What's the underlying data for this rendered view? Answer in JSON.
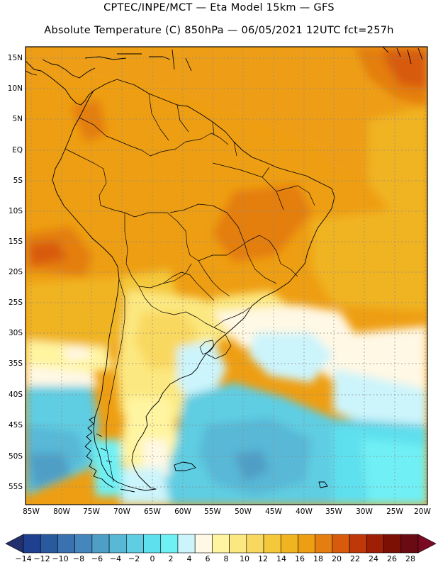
{
  "title": {
    "line1": "CPTEC/INPE/MCT —  Eta Model 15km — GFS",
    "line2": "Absolute Temperature (C) 850hPa — 06/05/2021 12UTC fct=257h"
  },
  "lat_labels": [
    "15N",
    "10N",
    "5N",
    "EQ",
    "5S",
    "10S",
    "15S",
    "20S",
    "25S",
    "30S",
    "35S",
    "40S",
    "45S",
    "50S",
    "55S"
  ],
  "lon_labels": [
    "85W",
    "80W",
    "75W",
    "70W",
    "65W",
    "60W",
    "55W",
    "50W",
    "45W",
    "40W",
    "35W",
    "30W",
    "25W",
    "20W"
  ],
  "colorbar": {
    "labels": [
      "−14",
      "−12",
      "−10",
      "−8",
      "−6",
      "−4",
      "−2",
      "0",
      "2",
      "4",
      "6",
      "8",
      "10",
      "12",
      "14",
      "16",
      "18",
      "20",
      "22",
      "24",
      "26",
      "28"
    ],
    "colors": [
      "#1f3f8f",
      "#2a5a9e",
      "#3a72b0",
      "#4587bd",
      "#4f9ec6",
      "#58b8d6",
      "#5fcde2",
      "#5fe0ee",
      "#6ff0f4",
      "#ccf4fb",
      "#fff8e4",
      "#fff4a0",
      "#fce880",
      "#f9d860",
      "#f4c83a",
      "#f0b420",
      "#ee9e12",
      "#e47e10",
      "#d85a0c",
      "#bf3808",
      "#9f1e06",
      "#7c1005",
      "#6a0a12"
    ],
    "under_color": "#22306e",
    "over_color": "#7a0a22"
  }
}
